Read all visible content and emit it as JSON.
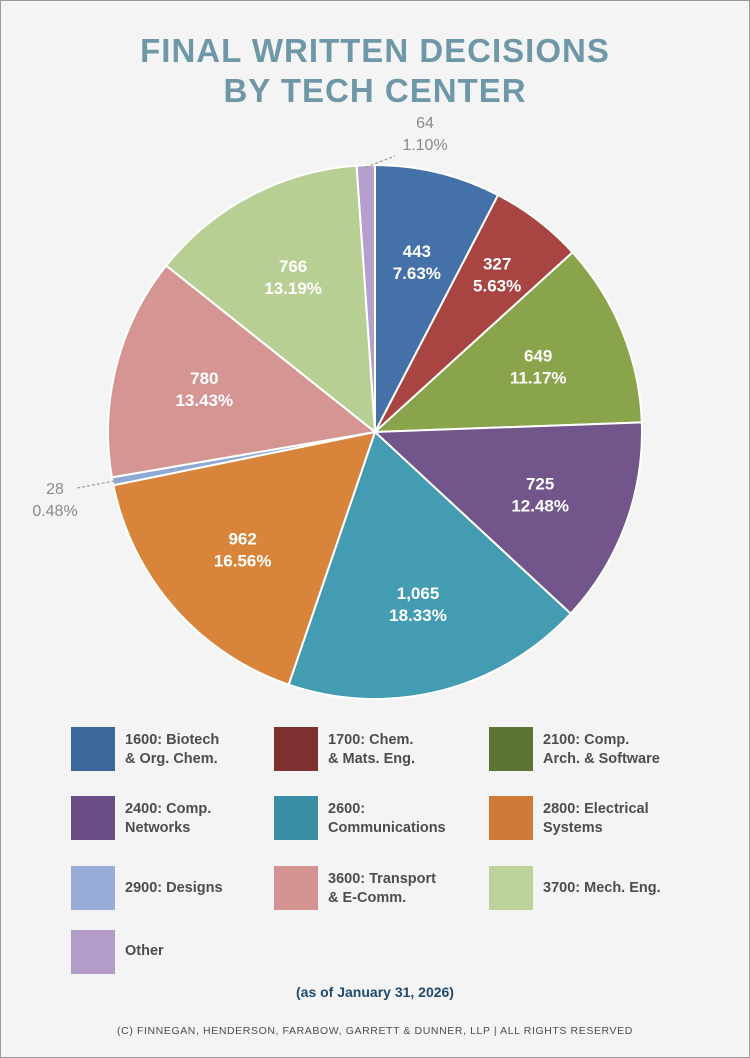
{
  "chart_data": {
    "type": "pie",
    "title_line1": "FINAL WRITTEN DECISIONS",
    "title_line2": "BY TECH CENTER",
    "slices": [
      {
        "category": "1600: Biotech & Org. Chem.",
        "value": 443,
        "value_label": "443",
        "percent": 7.63,
        "percent_label": "7.63%",
        "color": "#4472a8",
        "label_style": "inside"
      },
      {
        "category": "1700: Chem. & Mats. Eng.",
        "value": 327,
        "value_label": "327",
        "percent": 5.63,
        "percent_label": "5.63%",
        "color": "#a84543",
        "label_style": "inside"
      },
      {
        "category": "2100: Comp. Arch. & Software",
        "value": 649,
        "value_label": "649",
        "percent": 11.17,
        "percent_label": "11.17%",
        "color": "#8aa44c",
        "label_style": "inside"
      },
      {
        "category": "2400: Comp. Networks",
        "value": 725,
        "value_label": "725",
        "percent": 12.48,
        "percent_label": "12.48%",
        "color": "#71558b",
        "label_style": "inside"
      },
      {
        "category": "2600: Communications",
        "value": 1065,
        "value_label": "1,065",
        "percent": 18.33,
        "percent_label": "18.33%",
        "color": "#439cb2",
        "label_style": "inside"
      },
      {
        "category": "2800: Electrical Systems",
        "value": 962,
        "value_label": "962",
        "percent": 16.56,
        "percent_label": "16.56%",
        "color": "#d8843b",
        "label_style": "inside"
      },
      {
        "category": "2900: Designs",
        "value": 28,
        "value_label": "28",
        "percent": 0.48,
        "percent_label": "0.48%",
        "color": "#8fa9d6",
        "label_style": "outside-left"
      },
      {
        "category": "3600: Transport & E-Comm.",
        "value": 780,
        "value_label": "780",
        "percent": 13.43,
        "percent_label": "13.43%",
        "color": "#d59593",
        "label_style": "inside"
      },
      {
        "category": "3700: Mech. Eng.",
        "value": 766,
        "value_label": "766",
        "percent": 13.19,
        "percent_label": "13.19%",
        "color": "#b8cf94",
        "label_style": "inside"
      },
      {
        "category": "Other",
        "value": 64,
        "value_label": "64",
        "percent": 1.1,
        "percent_label": "1.10%",
        "color": "#b69fcc",
        "label_style": "outside-top"
      }
    ],
    "legend": [
      {
        "label_line1": "1600: Biotech",
        "label_line2": "& Org. Chem.",
        "color": "#3c679a"
      },
      {
        "label_line1": "1700: Chem.",
        "label_line2": "& Mats. Eng.",
        "color": "#7d3131"
      },
      {
        "label_line1": "2100: Comp.",
        "label_line2": "Arch. & Software",
        "color": "#5b7535"
      },
      {
        "label_line1": "2400: Comp.",
        "label_line2": "Networks",
        "color": "#6a4f86"
      },
      {
        "label_line1": "2600:",
        "label_line2": "Communications",
        "color": "#3a8ea3"
      },
      {
        "label_line1": "2800: Electrical",
        "label_line2": "Systems",
        "color": "#cf7a36"
      },
      {
        "label_line1": "2900: Designs",
        "label_line2": "",
        "color": "#97acd6"
      },
      {
        "label_line1": "3600: Transport",
        "label_line2": "& E-Comm.",
        "color": "#d49391"
      },
      {
        "label_line1": "3700: Mech. Eng.",
        "label_line2": "",
        "color": "#bcd29a"
      },
      {
        "label_line1": "Other",
        "label_line2": "",
        "color": "#b39cc9"
      }
    ],
    "note": "(as of January 31, 2026)",
    "copyright": "(C) FINNEGAN, HENDERSON, FARABOW, GARRETT & DUNNER, LLP | ALL RIGHTS RESERVED"
  }
}
